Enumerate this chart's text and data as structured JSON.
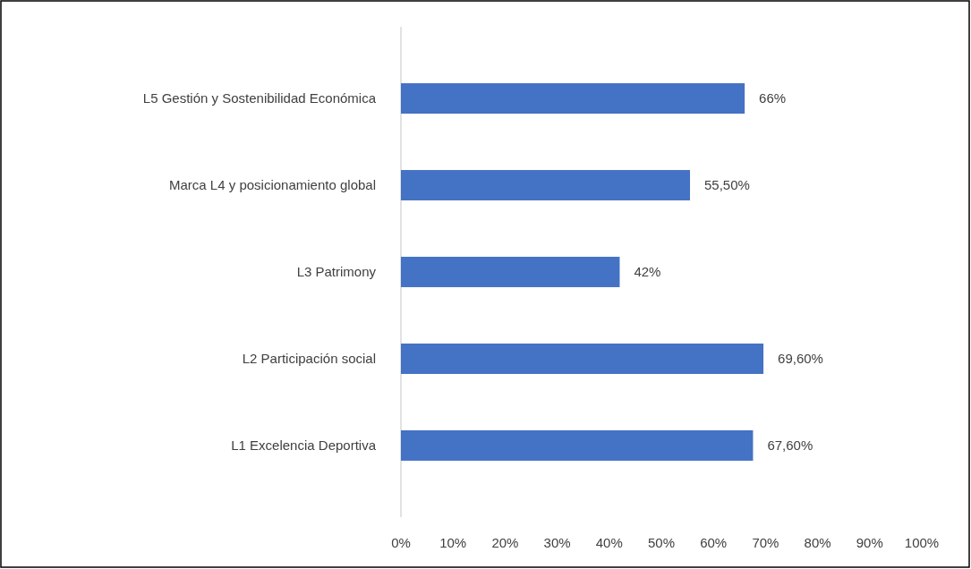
{
  "chart_data": {
    "type": "bar",
    "orientation": "horizontal",
    "categories": [
      "L5 Gestión y Sostenibilidad Económica",
      "Marca L4 y posicionamiento global",
      "L3 Patrimony",
      "L2 Participación social",
      "L1 Excelencia Deportiva"
    ],
    "values": [
      66,
      55.5,
      42,
      69.6,
      67.6
    ],
    "value_labels": [
      "66%",
      "55,50%",
      "42%",
      "69,60%",
      "67,60%"
    ],
    "color": "#4472c4",
    "xlim": [
      0,
      100
    ],
    "xticks": [
      {
        "value": 0,
        "label": "0%"
      },
      {
        "value": 10,
        "label": "10%"
      },
      {
        "value": 20,
        "label": "20%"
      },
      {
        "value": 30,
        "label": "30%"
      },
      {
        "value": 40,
        "label": "40%"
      },
      {
        "value": 50,
        "label": "50%"
      },
      {
        "value": 60,
        "label": "60%"
      },
      {
        "value": 70,
        "label": "70%"
      },
      {
        "value": 80,
        "label": "80%"
      },
      {
        "value": 90,
        "label": "90%"
      },
      {
        "value": 100,
        "label": "100%"
      }
    ],
    "grid": false
  }
}
